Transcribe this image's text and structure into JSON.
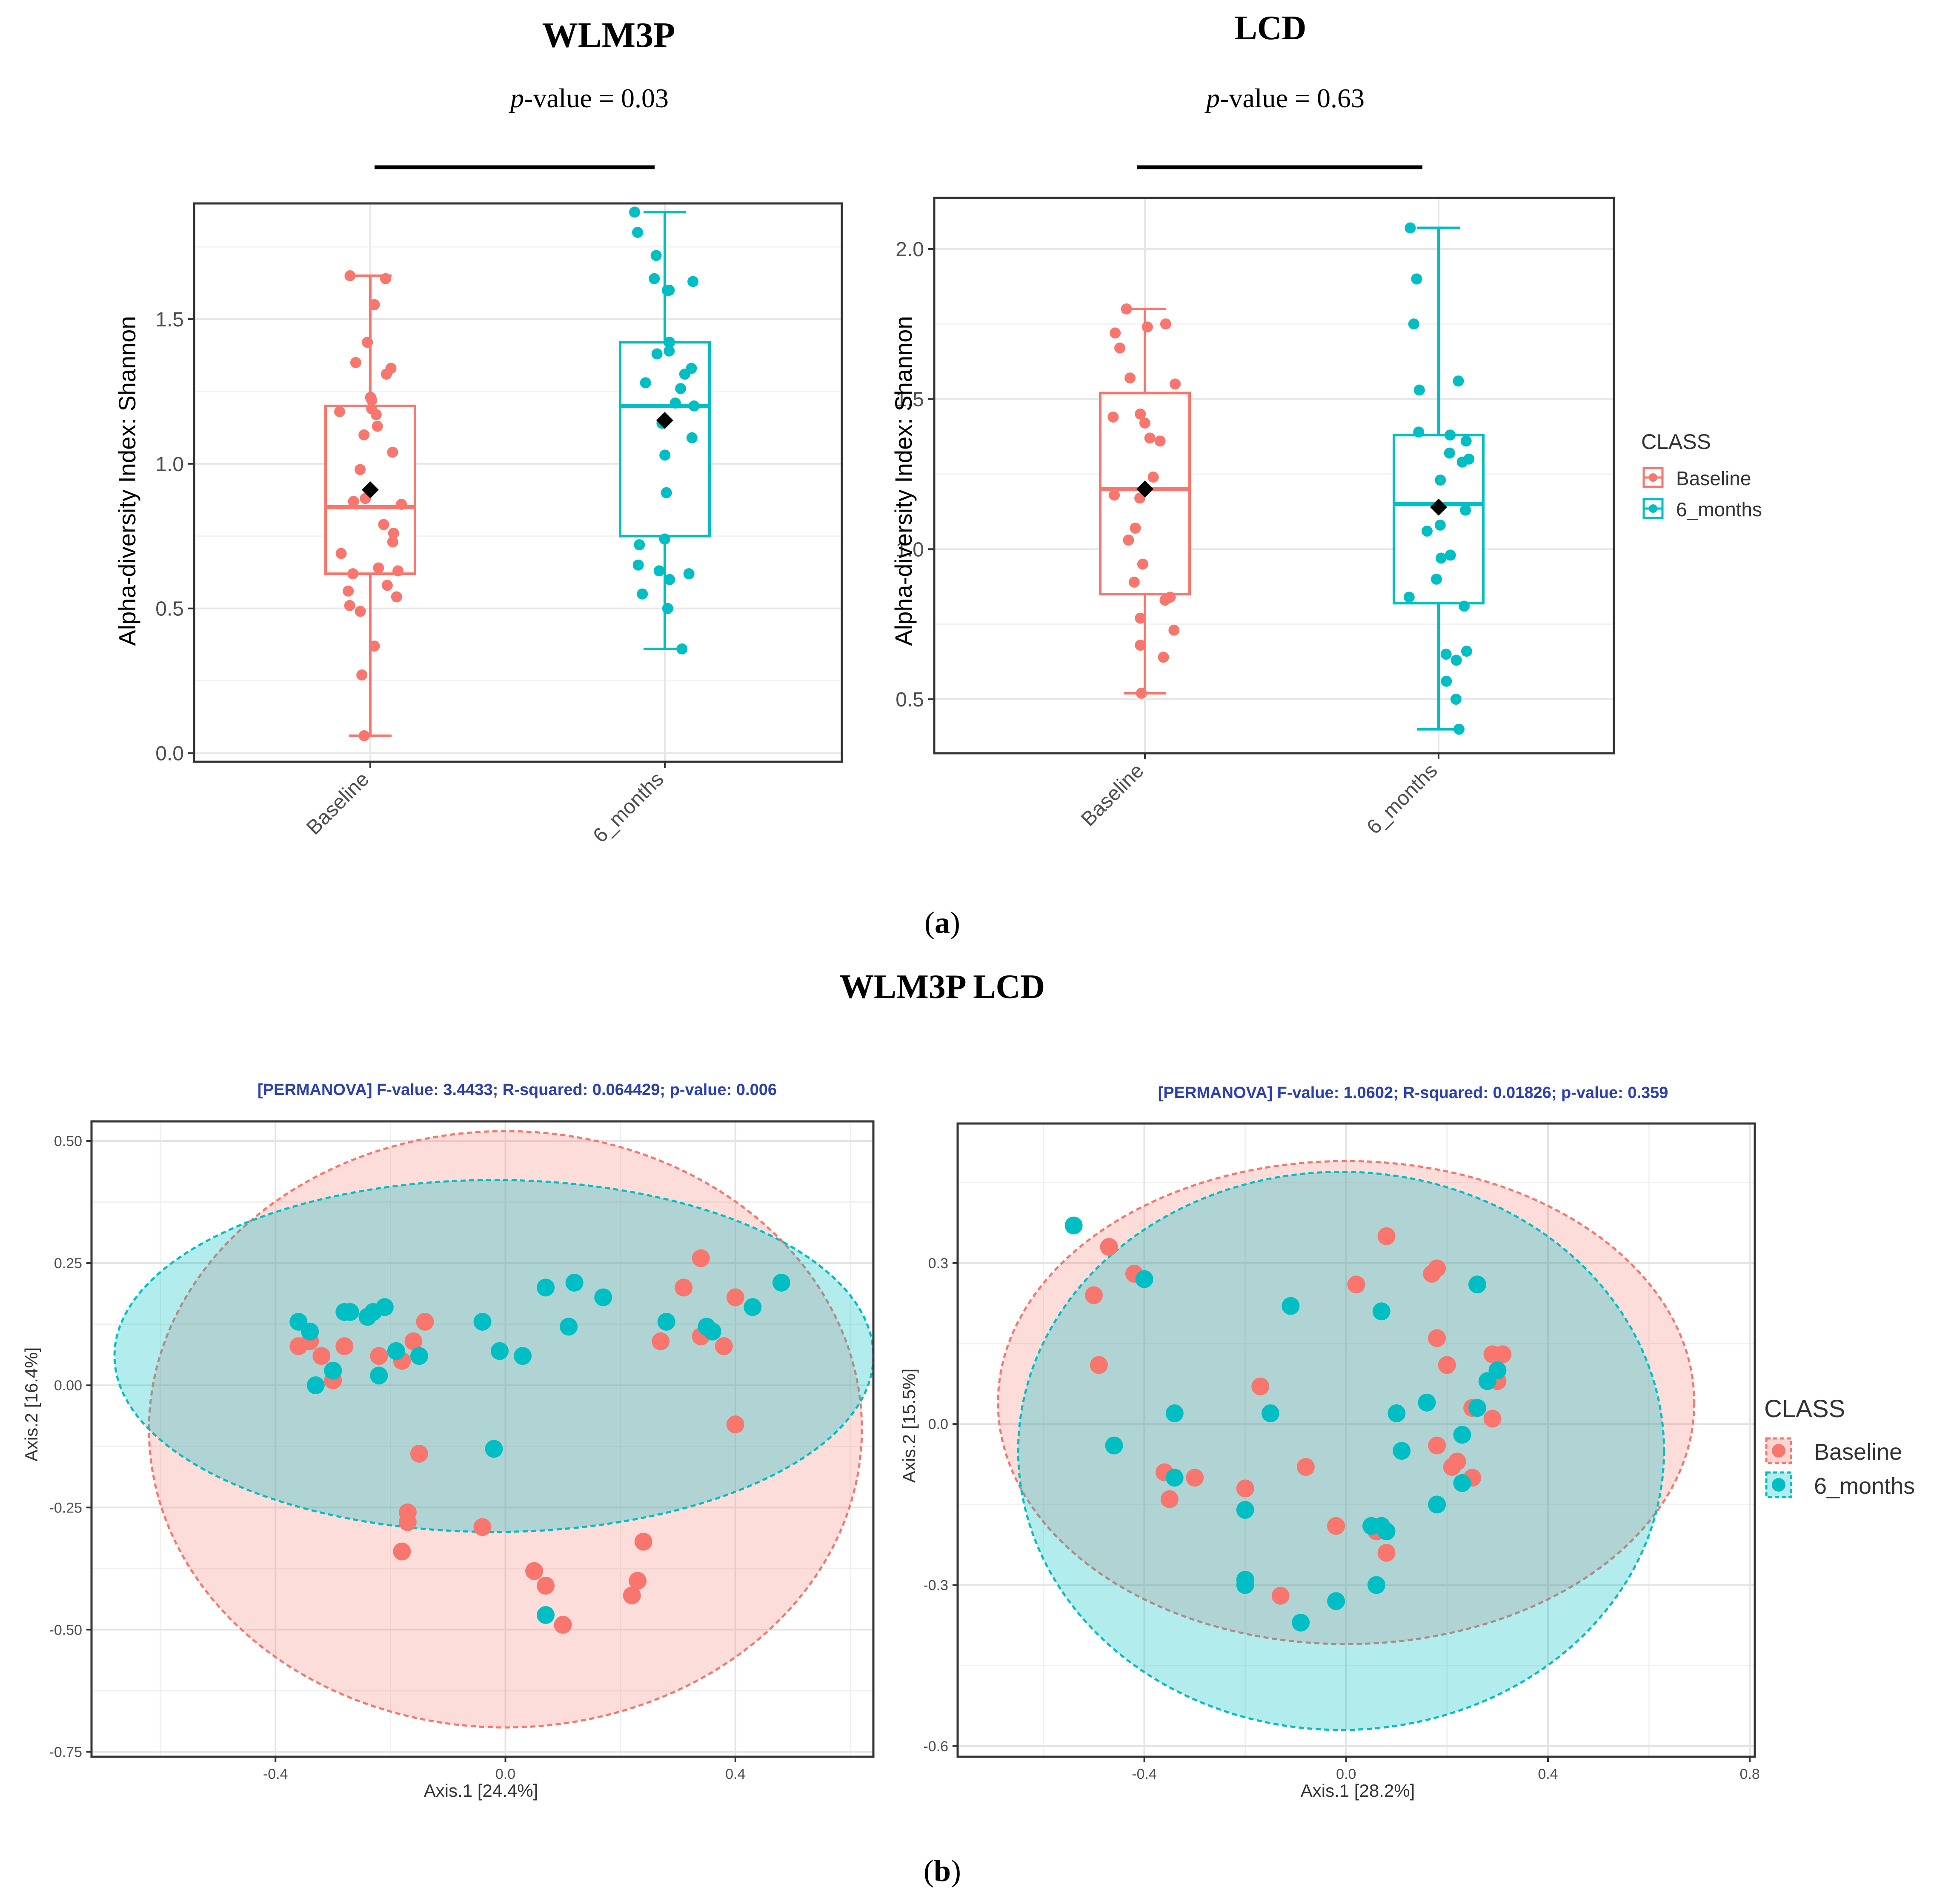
{
  "figure": {
    "top_titles": [
      "WLM3P",
      "LCD"
    ],
    "top_pvalues": [
      {
        "prefix": "p",
        "rest": "-value = 0.03"
      },
      {
        "prefix": "p",
        "rest": "-value = 0.63"
      }
    ],
    "label_a": "(a)",
    "label_a_parts": {
      "open": "(",
      "letter": "a",
      "close": ")"
    },
    "middle_title": "WLM3P LCD",
    "label_b": "(b)",
    "label_b_parts": {
      "open": "(",
      "letter": "b",
      "close": ")"
    }
  },
  "colors": {
    "baseline": "#F8766D",
    "six_months": "#00BFC4",
    "mean": "#000000"
  },
  "legend": {
    "title": "CLASS",
    "items": [
      "Baseline",
      "6_months"
    ]
  },
  "chart_data": [
    {
      "type": "box",
      "title": "WLM3P",
      "subtitle": "p-value = 0.03",
      "ylabel": "Alpha-diversity Index: Shannon",
      "xlabel": "",
      "ylim": [
        -0.03,
        1.9
      ],
      "yticks": [
        0.0,
        0.5,
        1.0,
        1.5
      ],
      "ytick_labels": [
        "0.0",
        "0.5",
        "1.0",
        "1.5"
      ],
      "categories": [
        "Baseline",
        "6_months"
      ],
      "series": [
        {
          "name": "Baseline",
          "box": {
            "min": 0.06,
            "q1": 0.62,
            "median": 0.85,
            "q3": 1.2,
            "max": 1.65,
            "mean": 0.91
          },
          "points": [
            1.65,
            1.64,
            1.55,
            1.42,
            1.35,
            1.33,
            1.31,
            1.23,
            1.22,
            1.19,
            1.18,
            1.17,
            1.13,
            1.1,
            1.04,
            0.98,
            0.88,
            0.87,
            0.86,
            0.79,
            0.76,
            0.73,
            0.69,
            0.64,
            0.63,
            0.62,
            0.58,
            0.56,
            0.54,
            0.51,
            0.49,
            0.37,
            0.27,
            0.06
          ]
        },
        {
          "name": "6_months",
          "box": {
            "min": 0.36,
            "q1": 0.75,
            "median": 1.2,
            "q3": 1.42,
            "max": 1.87,
            "mean": 1.15
          },
          "points": [
            1.87,
            1.8,
            1.72,
            1.64,
            1.63,
            1.6,
            1.6,
            1.42,
            1.42,
            1.39,
            1.38,
            1.33,
            1.31,
            1.28,
            1.26,
            1.21,
            1.2,
            1.14,
            1.09,
            1.03,
            0.9,
            0.74,
            0.72,
            0.65,
            0.63,
            0.62,
            0.6,
            0.55,
            0.5,
            0.36
          ]
        }
      ]
    },
    {
      "type": "box",
      "title": "LCD",
      "subtitle": "p-value = 0.63",
      "ylabel": "Alpha-diversity Index: Shannon",
      "xlabel": "",
      "ylim": [
        0.32,
        2.17
      ],
      "yticks": [
        0.5,
        1.0,
        1.5,
        2.0
      ],
      "ytick_labels": [
        "0.5",
        "1.0",
        "1.5",
        "2.0"
      ],
      "categories": [
        "Baseline",
        "6_months"
      ],
      "series": [
        {
          "name": "Baseline",
          "box": {
            "min": 0.52,
            "q1": 0.85,
            "median": 1.2,
            "q3": 1.52,
            "max": 1.8,
            "mean": 1.2
          },
          "points": [
            1.8,
            1.75,
            1.74,
            1.72,
            1.67,
            1.57,
            1.55,
            1.45,
            1.44,
            1.42,
            1.37,
            1.36,
            1.24,
            1.18,
            1.17,
            1.07,
            1.03,
            0.95,
            0.89,
            0.84,
            0.83,
            0.77,
            0.73,
            0.68,
            0.64,
            0.52
          ]
        },
        {
          "name": "6_months",
          "box": {
            "min": 0.4,
            "q1": 0.82,
            "median": 1.15,
            "q3": 1.38,
            "max": 2.07,
            "mean": 1.14
          },
          "points": [
            2.07,
            1.9,
            1.75,
            1.56,
            1.53,
            1.39,
            1.38,
            1.36,
            1.32,
            1.3,
            1.29,
            1.23,
            1.13,
            1.08,
            1.06,
            0.98,
            0.97,
            0.9,
            0.84,
            0.81,
            0.66,
            0.65,
            0.63,
            0.56,
            0.5,
            0.4
          ]
        }
      ]
    },
    {
      "type": "scatter",
      "title": "[PERMANOVA] F-value: 3.4433; R-squared: 0.064429; p-value: 0.006",
      "xlabel": "Axis.1   [24.4%]",
      "ylabel": "Axis.2   [16.4%]",
      "xlim": [
        -0.72,
        0.64
      ],
      "ylim": [
        -0.76,
        0.54
      ],
      "xticks": [
        -0.4,
        0.0,
        0.4
      ],
      "xtick_labels": [
        "-0.4",
        "0.0",
        "0.4"
      ],
      "yticks": [
        -0.75,
        -0.5,
        -0.25,
        0.0,
        0.25,
        0.5
      ],
      "ytick_labels": [
        "-0.75",
        "-0.50",
        "-0.25",
        "0.00",
        "0.25",
        "0.50"
      ],
      "ellipses": [
        {
          "name": "Baseline",
          "cx": 0.0,
          "cy": -0.09,
          "rx": 0.62,
          "ry": 0.61
        },
        {
          "name": "6_months",
          "cx": -0.02,
          "cy": 0.06,
          "rx": 0.66,
          "ry": 0.36
        }
      ],
      "series": [
        {
          "name": "Baseline",
          "points": [
            [
              -0.36,
              0.08
            ],
            [
              -0.34,
              0.09
            ],
            [
              -0.32,
              0.06
            ],
            [
              -0.3,
              0.01
            ],
            [
              -0.28,
              0.08
            ],
            [
              -0.22,
              0.06
            ],
            [
              -0.18,
              0.05
            ],
            [
              -0.16,
              0.09
            ],
            [
              -0.14,
              0.13
            ],
            [
              -0.15,
              -0.14
            ],
            [
              -0.17,
              -0.26
            ],
            [
              -0.17,
              -0.28
            ],
            [
              -0.18,
              -0.34
            ],
            [
              -0.04,
              -0.29
            ],
            [
              0.05,
              -0.38
            ],
            [
              0.07,
              -0.41
            ],
            [
              0.1,
              -0.49
            ],
            [
              0.22,
              -0.43
            ],
            [
              0.23,
              -0.4
            ],
            [
              0.24,
              -0.32
            ],
            [
              0.27,
              0.09
            ],
            [
              0.31,
              0.2
            ],
            [
              0.34,
              0.26
            ],
            [
              0.34,
              0.1
            ],
            [
              0.38,
              0.08
            ],
            [
              0.4,
              0.18
            ],
            [
              0.4,
              -0.08
            ]
          ]
        },
        {
          "name": "6_months",
          "points": [
            [
              -0.36,
              0.13
            ],
            [
              -0.34,
              0.11
            ],
            [
              -0.33,
              0.0
            ],
            [
              -0.3,
              0.03
            ],
            [
              -0.28,
              0.15
            ],
            [
              -0.27,
              0.15
            ],
            [
              -0.24,
              0.14
            ],
            [
              -0.23,
              0.15
            ],
            [
              -0.21,
              0.16
            ],
            [
              -0.22,
              0.02
            ],
            [
              -0.19,
              0.07
            ],
            [
              -0.15,
              0.06
            ],
            [
              -0.04,
              0.13
            ],
            [
              -0.01,
              0.07
            ],
            [
              0.03,
              0.06
            ],
            [
              -0.02,
              -0.13
            ],
            [
              0.07,
              0.2
            ],
            [
              0.11,
              0.12
            ],
            [
              0.12,
              0.21
            ],
            [
              0.17,
              0.18
            ],
            [
              0.28,
              0.13
            ],
            [
              0.35,
              0.12
            ],
            [
              0.36,
              0.11
            ],
            [
              0.43,
              0.16
            ],
            [
              0.48,
              0.21
            ],
            [
              0.07,
              -0.47
            ]
          ]
        }
      ]
    },
    {
      "type": "scatter",
      "title": "[PERMANOVA] F-value: 1.0602; R-squared: 0.01826; p-value: 0.359",
      "xlabel": "Axis.1   [28.2%]",
      "ylabel": "Axis.2   [15.5%]",
      "xlim": [
        -0.77,
        0.81
      ],
      "ylim": [
        -0.62,
        0.56
      ],
      "xticks": [
        -0.4,
        0.0,
        0.4,
        0.8
      ],
      "xtick_labels": [
        "-0.4",
        "0.0",
        "0.4",
        "0.8"
      ],
      "yticks": [
        -0.6,
        -0.3,
        0.0,
        0.3
      ],
      "ytick_labels": [
        "-0.6",
        "-0.3",
        "0.0",
        "0.3"
      ],
      "ellipses": [
        {
          "name": "Baseline",
          "cx": 0.0,
          "cy": 0.04,
          "rx": 0.69,
          "ry": 0.45
        },
        {
          "name": "6_months",
          "cx": -0.01,
          "cy": -0.05,
          "rx": 0.64,
          "ry": 0.52
        }
      ],
      "series": [
        {
          "name": "Baseline",
          "points": [
            [
              -0.47,
              0.33
            ],
            [
              -0.42,
              0.28
            ],
            [
              -0.5,
              0.24
            ],
            [
              -0.49,
              0.11
            ],
            [
              -0.36,
              -0.09
            ],
            [
              -0.35,
              -0.14
            ],
            [
              -0.3,
              -0.1
            ],
            [
              -0.2,
              -0.12
            ],
            [
              -0.17,
              0.07
            ],
            [
              -0.08,
              -0.08
            ],
            [
              -0.13,
              -0.32
            ],
            [
              -0.02,
              -0.19
            ],
            [
              0.02,
              0.26
            ],
            [
              0.08,
              0.35
            ],
            [
              0.06,
              -0.2
            ],
            [
              0.08,
              -0.24
            ],
            [
              0.17,
              0.28
            ],
            [
              0.18,
              0.29
            ],
            [
              0.18,
              0.16
            ],
            [
              0.2,
              0.11
            ],
            [
              0.18,
              -0.04
            ],
            [
              0.21,
              -0.08
            ],
            [
              0.22,
              -0.07
            ],
            [
              0.25,
              -0.1
            ],
            [
              0.25,
              0.03
            ],
            [
              0.29,
              0.13
            ],
            [
              0.31,
              0.13
            ],
            [
              0.3,
              0.08
            ],
            [
              0.29,
              0.01
            ]
          ]
        },
        {
          "name": "6_months",
          "points": [
            [
              -0.54,
              0.37
            ],
            [
              -0.4,
              0.27
            ],
            [
              -0.46,
              -0.04
            ],
            [
              -0.34,
              0.02
            ],
            [
              -0.34,
              -0.1
            ],
            [
              -0.2,
              -0.16
            ],
            [
              -0.2,
              -0.29
            ],
            [
              -0.2,
              -0.3
            ],
            [
              -0.15,
              0.02
            ],
            [
              -0.11,
              0.22
            ],
            [
              -0.09,
              -0.37
            ],
            [
              -0.02,
              -0.33
            ],
            [
              0.05,
              -0.19
            ],
            [
              0.07,
              -0.19
            ],
            [
              0.06,
              -0.3
            ],
            [
              0.08,
              -0.2
            ],
            [
              0.07,
              0.21
            ],
            [
              0.1,
              0.02
            ],
            [
              0.11,
              -0.05
            ],
            [
              0.16,
              0.04
            ],
            [
              0.18,
              -0.15
            ],
            [
              0.23,
              -0.02
            ],
            [
              0.23,
              -0.11
            ],
            [
              0.26,
              0.26
            ],
            [
              0.26,
              0.03
            ],
            [
              0.28,
              0.08
            ],
            [
              0.3,
              0.1
            ]
          ]
        }
      ]
    }
  ]
}
